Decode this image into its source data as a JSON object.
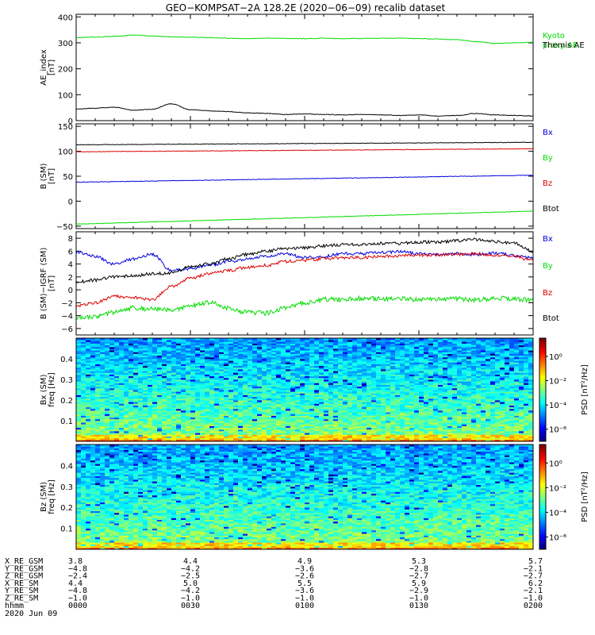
{
  "title": "GEO−KOMPSAT−2A 128.2E (2020−06−09) recalib dataset",
  "colors": {
    "green": "#00dd00",
    "black": "#000000",
    "red": "#dd0000",
    "blue": "#0000dd"
  },
  "chart_data": [
    {
      "type": "line",
      "panel": "ae-index",
      "ylabel": "AE_index\n[nT]",
      "ylim": [
        0,
        410
      ],
      "yticks": [
        "0",
        "100",
        "200",
        "300",
        "400"
      ],
      "ytick_values": [
        0,
        100,
        200,
        300,
        400
      ],
      "x": [
        0,
        5,
        10,
        15,
        20,
        25,
        30,
        35,
        40,
        45,
        50,
        55,
        60,
        65,
        70,
        75,
        80,
        85,
        90,
        95,
        100,
        105,
        110,
        115,
        120
      ],
      "legend": [
        "Kyoto\nproxy AE",
        "Themis AE"
      ],
      "series": [
        {
          "name": "Kyoto\nproxy AE",
          "color": "#00dd00",
          "values": [
            320,
            322,
            325,
            330,
            326,
            323,
            322,
            320,
            318,
            316,
            318,
            317,
            316,
            318,
            316,
            317,
            318,
            318,
            316,
            315,
            312,
            305,
            298,
            300,
            302
          ]
        },
        {
          "name": "Themis AE",
          "color": "#000000",
          "values": [
            45,
            48,
            52,
            40,
            44,
            65,
            42,
            38,
            35,
            30,
            28,
            24,
            26,
            24,
            22,
            24,
            22,
            20,
            22,
            18,
            20,
            28,
            22,
            20,
            18
          ]
        }
      ]
    },
    {
      "type": "line",
      "panel": "b-sm",
      "ylabel": "B (SM)\n[nT]",
      "ylim": [
        -55,
        155
      ],
      "yticks": [
        "−50",
        "0",
        "50",
        "100",
        "150"
      ],
      "ytick_values": [
        -50,
        0,
        50,
        100,
        150
      ],
      "x": [
        0,
        120
      ],
      "legend": [
        "Bx",
        "By",
        "Bz",
        "Btot"
      ],
      "series": [
        {
          "name": "Btot",
          "color": "#000000",
          "values": [
            113,
            118
          ]
        },
        {
          "name": "Bz",
          "color": "#dd0000",
          "values": [
            99,
            105
          ]
        },
        {
          "name": "Bx",
          "color": "#0000dd",
          "values": [
            38,
            52
          ]
        },
        {
          "name": "By",
          "color": "#00dd00",
          "values": [
            -46,
            -20
          ]
        }
      ]
    },
    {
      "type": "line",
      "panel": "b-sm-igrf",
      "ylabel": "B (SM)−IGRF (SM)\n[nT]",
      "ylim": [
        -7,
        9
      ],
      "yticks": [
        "−6",
        "−4",
        "−2",
        "0",
        "2",
        "4",
        "6",
        "8"
      ],
      "ytick_values": [
        -6,
        -4,
        -2,
        0,
        2,
        4,
        6,
        8
      ],
      "x": [
        0,
        5,
        10,
        15,
        20,
        25,
        30,
        35,
        40,
        45,
        50,
        55,
        60,
        65,
        70,
        75,
        80,
        85,
        90,
        95,
        100,
        105,
        110,
        115,
        120
      ],
      "legend": [
        "Bx",
        "By",
        "Bz",
        "Btot"
      ],
      "series": [
        {
          "name": "Bx",
          "color": "#0000dd",
          "values": [
            5.8,
            5.2,
            4.0,
            4.8,
            5.5,
            3.0,
            3.3,
            3.8,
            4.4,
            4.8,
            5.2,
            5.6,
            5.0,
            5.2,
            5.6,
            5.6,
            5.8,
            5.9,
            5.6,
            5.4,
            5.6,
            5.5,
            5.7,
            5.3,
            5.0
          ]
        },
        {
          "name": "Btot",
          "color": "#000000",
          "values": [
            1.2,
            1.5,
            2.0,
            2.2,
            2.5,
            2.6,
            3.6,
            4.0,
            4.8,
            5.5,
            6.0,
            6.4,
            6.5,
            6.8,
            7.0,
            7.0,
            7.2,
            7.2,
            7.4,
            7.4,
            7.6,
            7.8,
            7.5,
            7.2,
            6.0
          ]
        },
        {
          "name": "Bz",
          "color": "#dd0000",
          "values": [
            -2.5,
            -2.0,
            -1.0,
            -1.2,
            -1.5,
            0.5,
            1.8,
            2.5,
            3.0,
            3.5,
            3.8,
            4.4,
            4.6,
            4.8,
            5.0,
            5.0,
            5.2,
            5.3,
            5.4,
            5.4,
            5.5,
            5.6,
            5.4,
            5.2,
            4.5
          ]
        },
        {
          "name": "By",
          "color": "#00dd00",
          "values": [
            -4.5,
            -4.2,
            -3.5,
            -2.8,
            -3.0,
            -3.2,
            -2.5,
            -2.0,
            -2.8,
            -3.5,
            -3.6,
            -2.8,
            -2.0,
            -1.5,
            -1.5,
            -1.3,
            -1.4,
            -1.3,
            -1.5,
            -1.5,
            -1.4,
            -1.6,
            -1.3,
            -1.4,
            -1.6
          ]
        }
      ]
    },
    {
      "type": "heatmap",
      "panel": "bx-spectrogram",
      "ylabel": "Bx (SM)\nfreq [Hz]",
      "ylim": [
        0,
        0.5
      ],
      "yticks": [
        "0.1",
        "0.2",
        "0.3",
        "0.4"
      ],
      "ytick_values": [
        0.1,
        0.2,
        0.3,
        0.4
      ],
      "colorbar": {
        "label": "PSD [nT²/Hz]",
        "ticks": [
          "10⁰",
          "10⁻²",
          "10⁻⁴",
          "10⁻⁶"
        ],
        "tick_exponents": [
          0,
          -2,
          -4,
          -6
        ],
        "log_range": [
          -7,
          1.5
        ]
      }
    },
    {
      "type": "heatmap",
      "panel": "bz-spectrogram",
      "ylabel": "Bz (SM)\nfreq [Hz]",
      "ylim": [
        0,
        0.5
      ],
      "yticks": [
        "0.1",
        "0.2",
        "0.3",
        "0.4"
      ],
      "ytick_values": [
        0.1,
        0.2,
        0.3,
        0.4
      ],
      "colorbar": {
        "label": "PSD [nT²/Hz]",
        "ticks": [
          "10⁰",
          "10⁻²",
          "10⁻⁴",
          "10⁻⁶"
        ],
        "tick_exponents": [
          0,
          -2,
          -4,
          -6
        ],
        "log_range": [
          -7,
          1.5
        ]
      }
    }
  ],
  "ephemeris": {
    "rows": [
      {
        "label": "X_RE_GSM",
        "values": [
          "3.8",
          "4.4",
          "4.9",
          "5.3",
          "5.7"
        ]
      },
      {
        "label": "Y_RE_GSM",
        "values": [
          "−4.8",
          "−4.2",
          "−3.6",
          "−2.8",
          "−2.1"
        ]
      },
      {
        "label": "Z_RE_GSM",
        "values": [
          "−2.4",
          "−2.5",
          "−2.6",
          "−2.7",
          "−2.7"
        ]
      },
      {
        "label": "X_RE_SM",
        "values": [
          "4.4",
          "5.0",
          "5.5",
          "5.9",
          "6.2"
        ]
      },
      {
        "label": "Y_RE_SM",
        "values": [
          "−4.8",
          "−4.2",
          "−3.6",
          "−2.9",
          "−2.1"
        ]
      },
      {
        "label": "Z_RE_SM",
        "values": [
          "−1.0",
          "−1.0",
          "−1.0",
          "−1.0",
          "−1.0"
        ]
      },
      {
        "label": "hhmm",
        "values": [
          "0000",
          "0030",
          "0100",
          "0130",
          "0200"
        ]
      }
    ],
    "date": "2020 Jun 09"
  }
}
